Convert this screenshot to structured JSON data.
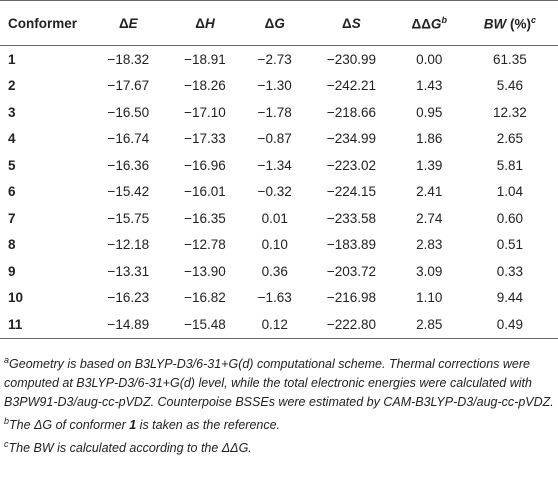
{
  "table": {
    "header": [
      [
        {
          "text": "Conformer",
          "style": "bold"
        }
      ],
      [
        {
          "text": "Δ",
          "style": "bold"
        },
        {
          "text": "E",
          "style": "bold-italic"
        }
      ],
      [
        {
          "text": "Δ",
          "style": "bold"
        },
        {
          "text": "H",
          "style": "bold-italic"
        }
      ],
      [
        {
          "text": "Δ",
          "style": "bold"
        },
        {
          "text": "G",
          "style": "bold-italic"
        }
      ],
      [
        {
          "text": "Δ",
          "style": "bold"
        },
        {
          "text": "S",
          "style": "bold-italic"
        }
      ],
      [
        {
          "text": "ΔΔ",
          "style": "bold"
        },
        {
          "text": "G",
          "style": "bold-italic"
        },
        {
          "text": "b",
          "style": "sup-italic"
        }
      ],
      [
        {
          "text": "BW",
          "style": "bold-italic"
        },
        {
          "text": " (%)",
          "style": "bold"
        },
        {
          "text": "c",
          "style": "sup-italic"
        }
      ]
    ],
    "rows": [
      [
        "1",
        "−18.32",
        "−18.91",
        "−2.73",
        "−230.99",
        "0.00",
        "61.35"
      ],
      [
        "2",
        "−17.67",
        "−18.26",
        "−1.30",
        "−242.21",
        "1.43",
        "5.46"
      ],
      [
        "3",
        "−16.50",
        "−17.10",
        "−1.78",
        "−218.66",
        "0.95",
        "12.32"
      ],
      [
        "4",
        "−16.74",
        "−17.33",
        "−0.87",
        "−234.99",
        "1.86",
        "2.65"
      ],
      [
        "5",
        "−16.36",
        "−16.96",
        "−1.34",
        "−223.02",
        "1.39",
        "5.81"
      ],
      [
        "6",
        "−15.42",
        "−16.01",
        "−0.32",
        "−224.15",
        "2.41",
        "1.04"
      ],
      [
        "7",
        "−15.75",
        "−16.35",
        "0.01",
        "−233.58",
        "2.74",
        "0.60"
      ],
      [
        "8",
        "−12.18",
        "−12.78",
        "0.10",
        "−183.89",
        "2.83",
        "0.51"
      ],
      [
        "9",
        "−13.31",
        "−13.90",
        "0.36",
        "−203.72",
        "3.09",
        "0.33"
      ],
      [
        "10",
        "−16.23",
        "−16.82",
        "−1.63",
        "−216.98",
        "1.10",
        "9.44"
      ],
      [
        "11",
        "−14.89",
        "−15.48",
        "0.12",
        "−222.80",
        "2.85",
        "0.49"
      ]
    ]
  },
  "footnotes": [
    [
      {
        "text": "a",
        "style": "sup-italic"
      },
      {
        "text": "Geometry is based on B3LYP-D3/6-31+G(d) computational scheme. Thermal corrections were computed at B3LYP-D3/6-31+G(d) level, while the total electronic energies were calculated with B3PW91-D3/aug-cc-pVDZ. Counterpoise BSSEs were estimated by CAM-B3LYP-D3/aug-cc-pVDZ.",
        "style": "italic"
      }
    ],
    [
      {
        "text": "b",
        "style": "sup-italic"
      },
      {
        "text": "The ΔG of conformer ",
        "style": "italic"
      },
      {
        "text": "1",
        "style": "bold-italic"
      },
      {
        "text": " is taken as the reference.",
        "style": "italic"
      }
    ],
    [
      {
        "text": "c",
        "style": "sup-italic"
      },
      {
        "text": "The BW is calculated according to the ΔΔG.",
        "style": "italic"
      }
    ]
  ]
}
